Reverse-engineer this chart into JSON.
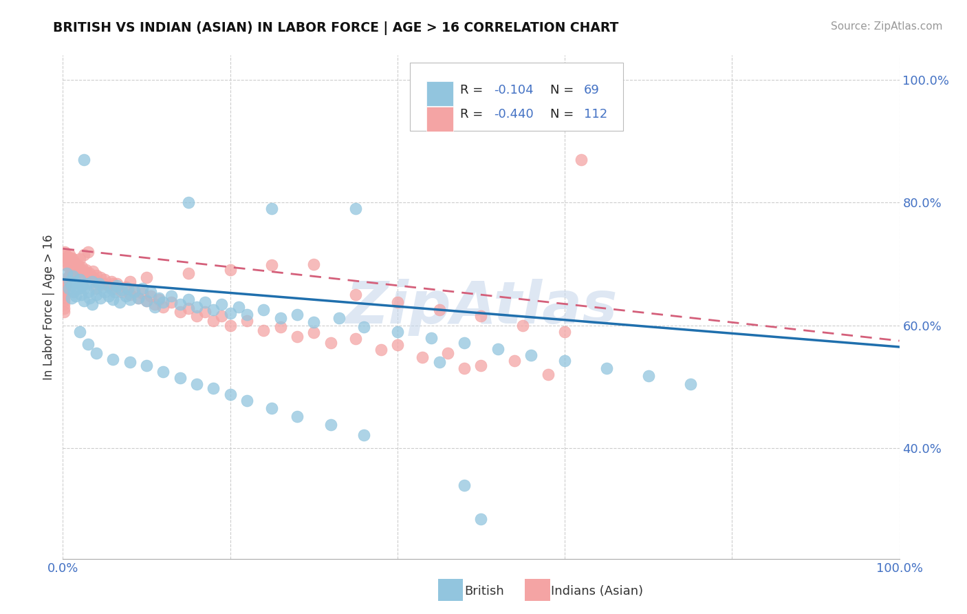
{
  "title": "BRITISH VS INDIAN (ASIAN) IN LABOR FORCE | AGE > 16 CORRELATION CHART",
  "source": "Source: ZipAtlas.com",
  "ylabel": "In Labor Force | Age > 16",
  "xlim": [
    0.0,
    1.0
  ],
  "ylim": [
    0.22,
    1.04
  ],
  "x_ticks": [
    0.0,
    0.2,
    0.4,
    0.6,
    0.8,
    1.0
  ],
  "x_tick_labels": [
    "0.0%",
    "",
    "",
    "",
    "",
    "100.0%"
  ],
  "y_ticks": [
    0.4,
    0.6,
    0.8,
    1.0
  ],
  "y_tick_labels": [
    "40.0%",
    "60.0%",
    "80.0%",
    "100.0%"
  ],
  "british_color": "#92c5de",
  "indian_color": "#f4a4a4",
  "british_line_color": "#1f6fad",
  "indian_line_color": "#d45f7a",
  "british_r": -0.104,
  "british_n": 69,
  "indian_r": -0.44,
  "indian_n": 112,
  "text_color": "#4472c4",
  "label_color": "#333333",
  "background_color": "#ffffff",
  "grid_color": "#cccccc",
  "watermark": "ZipAtlas",
  "watermark_color": "#c8d8ec",
  "title_color": "#111111",
  "source_color": "#999999",
  "brit_line_start_y": 0.675,
  "brit_line_end_y": 0.565,
  "ind_line_start_y": 0.725,
  "ind_line_end_y": 0.575,
  "british_x": [
    0.005,
    0.007,
    0.008,
    0.01,
    0.01,
    0.012,
    0.013,
    0.015,
    0.015,
    0.018,
    0.02,
    0.022,
    0.023,
    0.025,
    0.025,
    0.028,
    0.03,
    0.032,
    0.035,
    0.035,
    0.038,
    0.04,
    0.043,
    0.045,
    0.048,
    0.05,
    0.055,
    0.058,
    0.06,
    0.062,
    0.065,
    0.068,
    0.07,
    0.075,
    0.078,
    0.08,
    0.085,
    0.09,
    0.095,
    0.1,
    0.105,
    0.11,
    0.115,
    0.12,
    0.13,
    0.14,
    0.15,
    0.16,
    0.17,
    0.18,
    0.19,
    0.2,
    0.21,
    0.22,
    0.24,
    0.26,
    0.28,
    0.3,
    0.33,
    0.36,
    0.4,
    0.44,
    0.48,
    0.52,
    0.56,
    0.6,
    0.65,
    0.7,
    0.75
  ],
  "british_y": [
    0.685,
    0.66,
    0.672,
    0.665,
    0.645,
    0.68,
    0.655,
    0.67,
    0.648,
    0.66,
    0.675,
    0.65,
    0.665,
    0.66,
    0.64,
    0.668,
    0.655,
    0.645,
    0.672,
    0.635,
    0.66,
    0.65,
    0.668,
    0.645,
    0.662,
    0.655,
    0.648,
    0.66,
    0.642,
    0.655,
    0.665,
    0.638,
    0.658,
    0.648,
    0.66,
    0.642,
    0.655,
    0.645,
    0.66,
    0.64,
    0.655,
    0.63,
    0.645,
    0.638,
    0.648,
    0.635,
    0.642,
    0.63,
    0.638,
    0.625,
    0.635,
    0.62,
    0.63,
    0.618,
    0.625,
    0.612,
    0.618,
    0.605,
    0.612,
    0.598,
    0.59,
    0.58,
    0.572,
    0.562,
    0.552,
    0.542,
    0.53,
    0.518,
    0.505
  ],
  "british_outliers_x": [
    0.025,
    0.15,
    0.25,
    0.35,
    0.45,
    0.48,
    0.5
  ],
  "british_outliers_y": [
    0.87,
    0.8,
    0.79,
    0.79,
    0.54,
    0.34,
    0.285
  ],
  "british_low_x": [
    0.02,
    0.03,
    0.04,
    0.06,
    0.08,
    0.1,
    0.12,
    0.14,
    0.16,
    0.18,
    0.2,
    0.22,
    0.25,
    0.28,
    0.32,
    0.36
  ],
  "british_low_y": [
    0.59,
    0.57,
    0.555,
    0.545,
    0.54,
    0.535,
    0.525,
    0.515,
    0.505,
    0.498,
    0.488,
    0.478,
    0.465,
    0.452,
    0.438,
    0.422
  ],
  "indian_x": [
    0.002,
    0.003,
    0.004,
    0.005,
    0.005,
    0.006,
    0.007,
    0.007,
    0.008,
    0.008,
    0.009,
    0.01,
    0.01,
    0.011,
    0.012,
    0.012,
    0.013,
    0.014,
    0.015,
    0.015,
    0.016,
    0.017,
    0.018,
    0.019,
    0.02,
    0.021,
    0.022,
    0.023,
    0.025,
    0.026,
    0.028,
    0.03,
    0.032,
    0.034,
    0.036,
    0.038,
    0.04,
    0.042,
    0.045,
    0.048,
    0.05,
    0.055,
    0.058,
    0.062,
    0.065,
    0.07,
    0.075,
    0.08,
    0.085,
    0.09,
    0.095,
    0.1,
    0.105,
    0.11,
    0.115,
    0.12,
    0.13,
    0.14,
    0.15,
    0.16,
    0.17,
    0.18,
    0.19,
    0.2,
    0.22,
    0.24,
    0.26,
    0.28,
    0.3,
    0.32,
    0.35,
    0.38,
    0.4,
    0.43,
    0.46,
    0.5,
    0.54,
    0.58,
    0.35,
    0.4,
    0.45,
    0.5,
    0.55,
    0.6,
    0.62,
    0.48,
    0.3,
    0.25,
    0.2,
    0.15,
    0.1,
    0.08,
    0.06,
    0.04,
    0.03,
    0.025,
    0.02,
    0.015,
    0.012,
    0.01,
    0.008,
    0.006,
    0.004,
    0.003,
    0.002,
    0.001,
    0.001,
    0.001,
    0.001,
    0.001,
    0.001,
    0.001
  ],
  "indian_y": [
    0.72,
    0.715,
    0.71,
    0.705,
    0.698,
    0.712,
    0.708,
    0.695,
    0.715,
    0.7,
    0.705,
    0.71,
    0.695,
    0.7,
    0.708,
    0.692,
    0.698,
    0.703,
    0.696,
    0.688,
    0.7,
    0.695,
    0.69,
    0.698,
    0.685,
    0.692,
    0.688,
    0.695,
    0.682,
    0.688,
    0.69,
    0.678,
    0.685,
    0.68,
    0.688,
    0.675,
    0.682,
    0.672,
    0.678,
    0.668,
    0.675,
    0.665,
    0.672,
    0.66,
    0.668,
    0.655,
    0.662,
    0.65,
    0.658,
    0.645,
    0.652,
    0.64,
    0.648,
    0.635,
    0.642,
    0.63,
    0.638,
    0.622,
    0.628,
    0.615,
    0.622,
    0.608,
    0.615,
    0.6,
    0.608,
    0.592,
    0.598,
    0.582,
    0.588,
    0.572,
    0.578,
    0.56,
    0.568,
    0.548,
    0.555,
    0.535,
    0.542,
    0.52,
    0.65,
    0.638,
    0.625,
    0.615,
    0.6,
    0.59,
    0.87,
    0.53,
    0.7,
    0.698,
    0.69,
    0.685,
    0.678,
    0.672,
    0.668,
    0.66,
    0.72,
    0.715,
    0.708,
    0.7,
    0.695,
    0.688,
    0.682,
    0.678,
    0.67,
    0.665,
    0.66,
    0.655,
    0.65,
    0.645,
    0.64,
    0.635,
    0.628,
    0.622
  ]
}
